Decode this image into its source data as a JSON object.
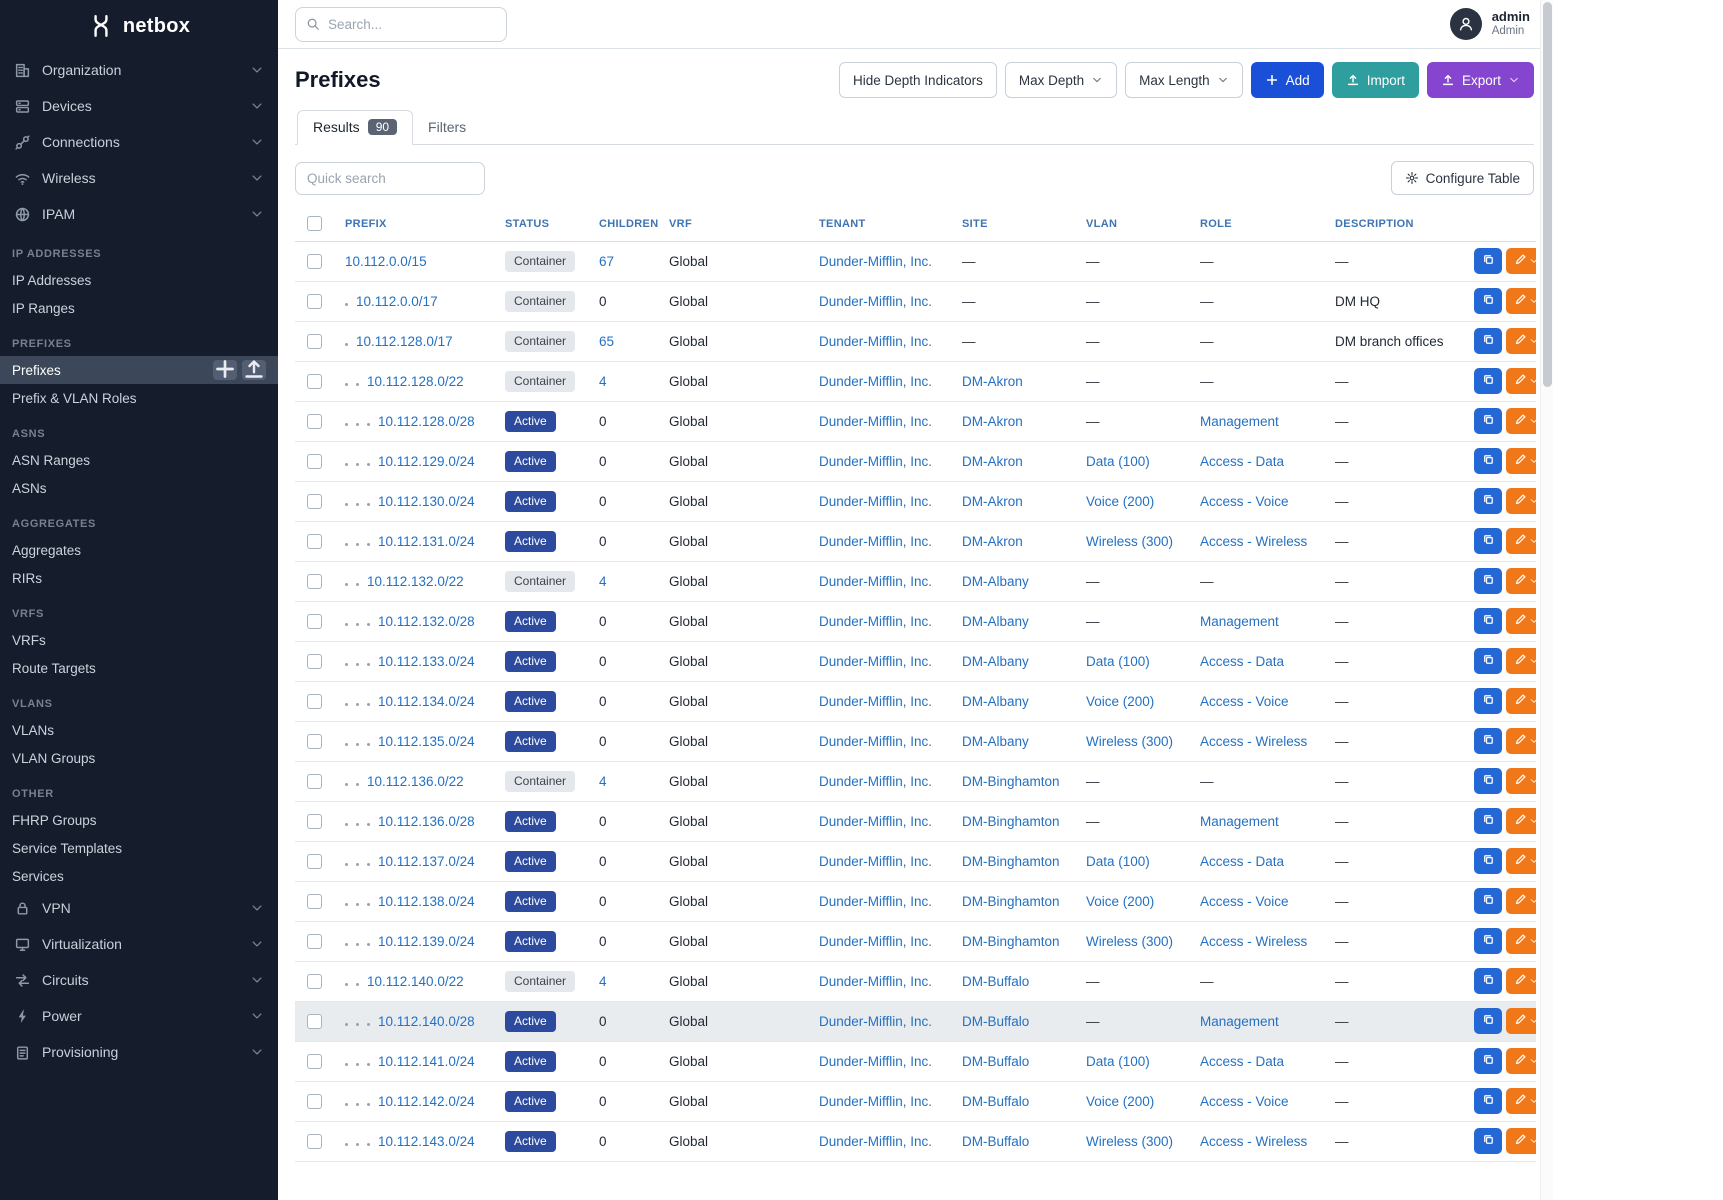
{
  "brand": {
    "name": "netbox"
  },
  "topbar": {
    "search_placeholder": "Search...",
    "user": {
      "name": "admin",
      "role": "Admin"
    }
  },
  "sidebar": {
    "top_items": [
      {
        "label": "Organization",
        "icon": "building-icon"
      },
      {
        "label": "Devices",
        "icon": "server-icon"
      },
      {
        "label": "Connections",
        "icon": "cable-icon"
      },
      {
        "label": "Wireless",
        "icon": "wifi-icon"
      },
      {
        "label": "IPAM",
        "icon": "ipam-icon"
      }
    ],
    "sections": [
      {
        "title": "IP ADDRESSES",
        "items": [
          {
            "label": "IP Addresses"
          },
          {
            "label": "IP Ranges"
          }
        ]
      },
      {
        "title": "PREFIXES",
        "items": [
          {
            "label": "Prefixes",
            "active": true
          },
          {
            "label": "Prefix & VLAN Roles"
          }
        ]
      },
      {
        "title": "ASNS",
        "items": [
          {
            "label": "ASN Ranges"
          },
          {
            "label": "ASNs"
          }
        ]
      },
      {
        "title": "AGGREGATES",
        "items": [
          {
            "label": "Aggregates"
          },
          {
            "label": "RIRs"
          }
        ]
      },
      {
        "title": "VRFS",
        "items": [
          {
            "label": "VRFs"
          },
          {
            "label": "Route Targets"
          }
        ]
      },
      {
        "title": "VLANS",
        "items": [
          {
            "label": "VLANs"
          },
          {
            "label": "VLAN Groups"
          }
        ]
      },
      {
        "title": "OTHER",
        "items": [
          {
            "label": "FHRP Groups"
          },
          {
            "label": "Service Templates"
          },
          {
            "label": "Services"
          }
        ]
      }
    ],
    "bottom_items": [
      {
        "label": "VPN",
        "icon": "lock-icon"
      },
      {
        "label": "Virtualization",
        "icon": "monitor-icon"
      },
      {
        "label": "Circuits",
        "icon": "circuit-icon"
      },
      {
        "label": "Power",
        "icon": "power-icon"
      },
      {
        "label": "Provisioning",
        "icon": "clipboard-icon"
      }
    ]
  },
  "page": {
    "title": "Prefixes",
    "toolbar": {
      "hide_depth": "Hide Depth Indicators",
      "max_depth": "Max Depth",
      "max_length": "Max Length",
      "add": "Add",
      "import": "Import",
      "export": "Export"
    },
    "tabs": [
      {
        "label": "Results",
        "badge": "90",
        "active": true
      },
      {
        "label": "Filters"
      }
    ],
    "quick_search_placeholder": "Quick search",
    "configure_table": "Configure Table"
  },
  "table": {
    "columns": [
      "PREFIX",
      "STATUS",
      "CHILDREN",
      "VRF",
      "TENANT",
      "SITE",
      "VLAN",
      "ROLE",
      "DESCRIPTION"
    ],
    "rows": [
      {
        "depth": 0,
        "prefix": "10.112.0.0/15",
        "status": "Container",
        "children": "67",
        "vrf": "Global",
        "tenant": "Dunder-Mifflin, Inc.",
        "site": "—",
        "vlan": "—",
        "role": "—",
        "description": "—"
      },
      {
        "depth": 1,
        "prefix": "10.112.0.0/17",
        "status": "Container",
        "children": "0",
        "vrf": "Global",
        "tenant": "Dunder-Mifflin, Inc.",
        "site": "—",
        "vlan": "—",
        "role": "—",
        "description": "DM HQ"
      },
      {
        "depth": 1,
        "prefix": "10.112.128.0/17",
        "status": "Container",
        "children": "65",
        "vrf": "Global",
        "tenant": "Dunder-Mifflin, Inc.",
        "site": "—",
        "vlan": "—",
        "role": "—",
        "description": "DM branch offices"
      },
      {
        "depth": 2,
        "prefix": "10.112.128.0/22",
        "status": "Container",
        "children": "4",
        "vrf": "Global",
        "tenant": "Dunder-Mifflin, Inc.",
        "site": "DM-Akron",
        "vlan": "—",
        "role": "—",
        "description": "—"
      },
      {
        "depth": 3,
        "prefix": "10.112.128.0/28",
        "status": "Active",
        "children": "0",
        "vrf": "Global",
        "tenant": "Dunder-Mifflin, Inc.",
        "site": "DM-Akron",
        "vlan": "—",
        "role": "Management",
        "description": "—"
      },
      {
        "depth": 3,
        "prefix": "10.112.129.0/24",
        "status": "Active",
        "children": "0",
        "vrf": "Global",
        "tenant": "Dunder-Mifflin, Inc.",
        "site": "DM-Akron",
        "vlan": "Data (100)",
        "role": "Access - Data",
        "description": "—"
      },
      {
        "depth": 3,
        "prefix": "10.112.130.0/24",
        "status": "Active",
        "children": "0",
        "vrf": "Global",
        "tenant": "Dunder-Mifflin, Inc.",
        "site": "DM-Akron",
        "vlan": "Voice (200)",
        "role": "Access - Voice",
        "description": "—"
      },
      {
        "depth": 3,
        "prefix": "10.112.131.0/24",
        "status": "Active",
        "children": "0",
        "vrf": "Global",
        "tenant": "Dunder-Mifflin, Inc.",
        "site": "DM-Akron",
        "vlan": "Wireless (300)",
        "role": "Access - Wireless",
        "description": "—"
      },
      {
        "depth": 2,
        "prefix": "10.112.132.0/22",
        "status": "Container",
        "children": "4",
        "vrf": "Global",
        "tenant": "Dunder-Mifflin, Inc.",
        "site": "DM-Albany",
        "vlan": "—",
        "role": "—",
        "description": "—"
      },
      {
        "depth": 3,
        "prefix": "10.112.132.0/28",
        "status": "Active",
        "children": "0",
        "vrf": "Global",
        "tenant": "Dunder-Mifflin, Inc.",
        "site": "DM-Albany",
        "vlan": "—",
        "role": "Management",
        "description": "—"
      },
      {
        "depth": 3,
        "prefix": "10.112.133.0/24",
        "status": "Active",
        "children": "0",
        "vrf": "Global",
        "tenant": "Dunder-Mifflin, Inc.",
        "site": "DM-Albany",
        "vlan": "Data (100)",
        "role": "Access - Data",
        "description": "—"
      },
      {
        "depth": 3,
        "prefix": "10.112.134.0/24",
        "status": "Active",
        "children": "0",
        "vrf": "Global",
        "tenant": "Dunder-Mifflin, Inc.",
        "site": "DM-Albany",
        "vlan": "Voice (200)",
        "role": "Access - Voice",
        "description": "—"
      },
      {
        "depth": 3,
        "prefix": "10.112.135.0/24",
        "status": "Active",
        "children": "0",
        "vrf": "Global",
        "tenant": "Dunder-Mifflin, Inc.",
        "site": "DM-Albany",
        "vlan": "Wireless (300)",
        "role": "Access - Wireless",
        "description": "—"
      },
      {
        "depth": 2,
        "prefix": "10.112.136.0/22",
        "status": "Container",
        "children": "4",
        "vrf": "Global",
        "tenant": "Dunder-Mifflin, Inc.",
        "site": "DM-Binghamton",
        "vlan": "—",
        "role": "—",
        "description": "—"
      },
      {
        "depth": 3,
        "prefix": "10.112.136.0/28",
        "status": "Active",
        "children": "0",
        "vrf": "Global",
        "tenant": "Dunder-Mifflin, Inc.",
        "site": "DM-Binghamton",
        "vlan": "—",
        "role": "Management",
        "description": "—"
      },
      {
        "depth": 3,
        "prefix": "10.112.137.0/24",
        "status": "Active",
        "children": "0",
        "vrf": "Global",
        "tenant": "Dunder-Mifflin, Inc.",
        "site": "DM-Binghamton",
        "vlan": "Data (100)",
        "role": "Access - Data",
        "description": "—"
      },
      {
        "depth": 3,
        "prefix": "10.112.138.0/24",
        "status": "Active",
        "children": "0",
        "vrf": "Global",
        "tenant": "Dunder-Mifflin, Inc.",
        "site": "DM-Binghamton",
        "vlan": "Voice (200)",
        "role": "Access - Voice",
        "description": "—"
      },
      {
        "depth": 3,
        "prefix": "10.112.139.0/24",
        "status": "Active",
        "children": "0",
        "vrf": "Global",
        "tenant": "Dunder-Mifflin, Inc.",
        "site": "DM-Binghamton",
        "vlan": "Wireless (300)",
        "role": "Access - Wireless",
        "description": "—"
      },
      {
        "depth": 2,
        "prefix": "10.112.140.0/22",
        "status": "Container",
        "children": "4",
        "vrf": "Global",
        "tenant": "Dunder-Mifflin, Inc.",
        "site": "DM-Buffalo",
        "vlan": "—",
        "role": "—",
        "description": "—"
      },
      {
        "depth": 3,
        "prefix": "10.112.140.0/28",
        "status": "Active",
        "children": "0",
        "vrf": "Global",
        "tenant": "Dunder-Mifflin, Inc.",
        "site": "DM-Buffalo",
        "vlan": "—",
        "role": "Management",
        "description": "—",
        "highlighted": true
      },
      {
        "depth": 3,
        "prefix": "10.112.141.0/24",
        "status": "Active",
        "children": "0",
        "vrf": "Global",
        "tenant": "Dunder-Mifflin, Inc.",
        "site": "DM-Buffalo",
        "vlan": "Data (100)",
        "role": "Access - Data",
        "description": "—"
      },
      {
        "depth": 3,
        "prefix": "10.112.142.0/24",
        "status": "Active",
        "children": "0",
        "vrf": "Global",
        "tenant": "Dunder-Mifflin, Inc.",
        "site": "DM-Buffalo",
        "vlan": "Voice (200)",
        "role": "Access - Voice",
        "description": "—"
      },
      {
        "depth": 3,
        "prefix": "10.112.143.0/24",
        "status": "Active",
        "children": "0",
        "vrf": "Global",
        "tenant": "Dunder-Mifflin, Inc.",
        "site": "DM-Buffalo",
        "vlan": "Wireless (300)",
        "role": "Access - Wireless",
        "description": "—"
      }
    ],
    "row_action_icons": [
      "copy-icon",
      "edit-icon",
      "caret-down-icon"
    ]
  },
  "colors": {
    "sidebar_bg": "#151c2c",
    "link": "#2470c2",
    "header_link": "#3e74b3",
    "active_badge": "#2c4a9e",
    "container_badge": "#e4e7ec",
    "add_button": "#1a4fd8",
    "import_button": "#2f9e9e",
    "export_button": "#8545cf",
    "copy_action": "#2368d4",
    "edit_action": "#f07818"
  }
}
